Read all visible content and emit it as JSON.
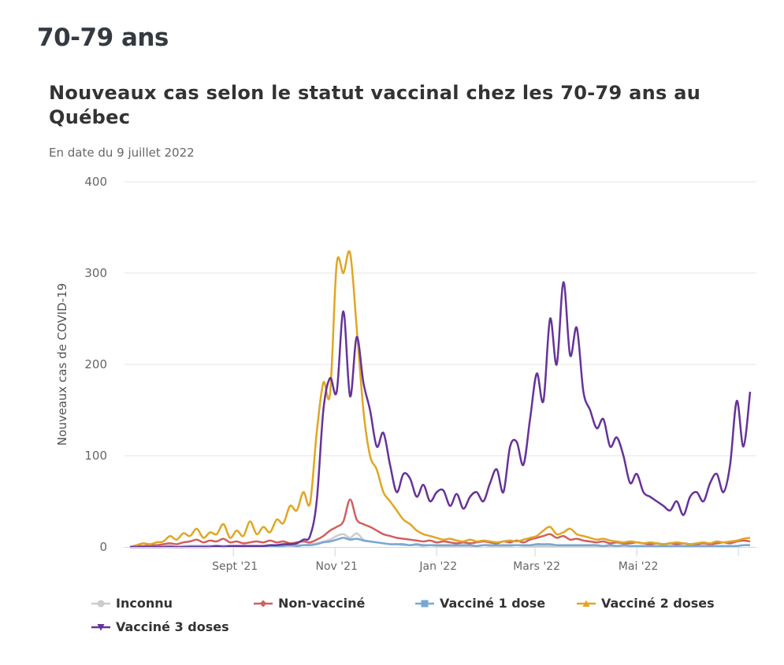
{
  "page": {
    "heading": "70-79 ans"
  },
  "chart_data": {
    "type": "line",
    "title": "Nouveaux cas selon le statut vaccinal chez les 70-79 ans au Québec",
    "subtitle": "En date du 9 juillet 2022",
    "xlabel": "",
    "ylabel": "Nouveaux cas de COVID-19",
    "ylim": [
      0,
      400
    ],
    "y_ticks": [
      0,
      100,
      200,
      300,
      400
    ],
    "y_tick_labels": [
      "0",
      "100",
      "200",
      "300",
      "400"
    ],
    "x_start": "2021-07-01",
    "x_end": "2022-07-08",
    "x_step_days": 4,
    "x_ticks": [
      {
        "date": "2021-09-01",
        "label": "Sept '21"
      },
      {
        "date": "2021-11-01",
        "label": "Nov '21"
      },
      {
        "date": "2022-01-01",
        "label": "Jan '22"
      },
      {
        "date": "2022-03-01",
        "label": "Mars '22"
      },
      {
        "date": "2022-05-01",
        "label": "Mai '22"
      },
      {
        "date": "2022-07-01",
        "label": ""
      }
    ],
    "grid": true,
    "legend_position": "bottom-left",
    "series": [
      {
        "name": "Inconnu",
        "color": "#cccccc",
        "marker": "circle",
        "values": [
          0,
          0,
          0,
          1,
          0,
          1,
          1,
          0,
          1,
          1,
          1,
          0,
          1,
          1,
          1,
          1,
          1,
          0,
          1,
          1,
          1,
          1,
          1,
          2,
          1,
          2,
          2,
          3,
          4,
          6,
          8,
          12,
          14,
          10,
          15,
          8,
          6,
          5,
          4,
          3,
          3,
          2,
          2,
          2,
          1,
          2,
          1,
          1,
          1,
          1,
          1,
          1,
          1,
          2,
          1,
          1,
          1,
          1,
          2,
          1,
          1,
          1,
          1,
          1,
          1,
          1,
          1,
          1,
          1,
          1,
          1,
          1,
          1,
          1,
          1,
          1,
          1,
          1,
          1,
          1,
          1,
          1,
          1,
          1,
          1,
          1,
          1,
          1,
          1,
          1,
          1,
          1,
          2,
          2
        ]
      },
      {
        "name": "Non-vacciné",
        "color": "#d0605e",
        "marker": "diamond",
        "values": [
          0,
          1,
          1,
          2,
          2,
          3,
          4,
          3,
          5,
          6,
          8,
          5,
          7,
          6,
          9,
          5,
          6,
          4,
          5,
          6,
          5,
          7,
          5,
          6,
          4,
          5,
          6,
          5,
          8,
          12,
          18,
          22,
          28,
          52,
          30,
          25,
          22,
          18,
          14,
          12,
          10,
          9,
          8,
          7,
          6,
          7,
          5,
          6,
          5,
          4,
          5,
          4,
          5,
          6,
          5,
          4,
          6,
          5,
          7,
          5,
          8,
          10,
          12,
          14,
          10,
          12,
          8,
          9,
          7,
          6,
          5,
          6,
          4,
          5,
          4,
          4,
          5,
          4,
          3,
          4,
          3,
          4,
          3,
          4,
          3,
          3,
          4,
          3,
          4,
          5,
          4,
          6,
          7,
          6
        ]
      },
      {
        "name": "Vacciné 1 dose",
        "color": "#78a8d2",
        "marker": "square",
        "values": [
          0,
          0,
          0,
          0,
          0,
          0,
          1,
          0,
          0,
          1,
          1,
          1,
          1,
          1,
          1,
          1,
          1,
          1,
          1,
          1,
          1,
          1,
          1,
          1,
          2,
          1,
          2,
          2,
          3,
          5,
          6,
          8,
          10,
          8,
          9,
          7,
          6,
          5,
          4,
          3,
          3,
          3,
          2,
          3,
          2,
          2,
          2,
          2,
          2,
          2,
          2,
          2,
          1,
          2,
          2,
          2,
          2,
          2,
          2,
          2,
          2,
          3,
          3,
          3,
          2,
          2,
          2,
          2,
          2,
          2,
          2,
          1,
          2,
          1,
          2,
          1,
          1,
          1,
          1,
          1,
          1,
          1,
          1,
          1,
          1,
          1,
          1,
          1,
          1,
          1,
          1,
          1,
          2,
          2
        ]
      },
      {
        "name": "Vacciné 2 doses",
        "color": "#e0a624",
        "marker": "triangle",
        "values": [
          0,
          2,
          4,
          3,
          5,
          6,
          12,
          8,
          15,
          12,
          20,
          10,
          16,
          14,
          25,
          10,
          18,
          12,
          28,
          14,
          22,
          16,
          30,
          26,
          45,
          40,
          60,
          48,
          125,
          180,
          168,
          310,
          300,
          322,
          240,
          150,
          100,
          85,
          60,
          50,
          40,
          30,
          25,
          18,
          14,
          12,
          10,
          8,
          9,
          7,
          6,
          8,
          6,
          7,
          6,
          5,
          6,
          7,
          6,
          8,
          10,
          12,
          18,
          22,
          14,
          16,
          20,
          14,
          12,
          10,
          8,
          9,
          7,
          6,
          5,
          6,
          5,
          4,
          5,
          4,
          3,
          4,
          5,
          4,
          3,
          4,
          5,
          4,
          6,
          5,
          6,
          7,
          9,
          10
        ]
      },
      {
        "name": "Vacciné 3 doses",
        "color": "#663399",
        "marker": "triangle-down",
        "values": [
          0,
          0,
          0,
          0,
          0,
          0,
          0,
          0,
          0,
          0,
          0,
          0,
          0,
          1,
          0,
          1,
          1,
          1,
          1,
          1,
          1,
          2,
          2,
          3,
          3,
          4,
          8,
          12,
          50,
          150,
          185,
          170,
          258,
          165,
          230,
          180,
          150,
          110,
          125,
          90,
          60,
          80,
          75,
          55,
          68,
          50,
          60,
          62,
          45,
          58,
          42,
          55,
          60,
          50,
          70,
          85,
          60,
          110,
          115,
          90,
          140,
          190,
          160,
          250,
          200,
          290,
          210,
          240,
          170,
          150,
          130,
          140,
          110,
          120,
          100,
          70,
          80,
          60,
          55,
          50,
          45,
          40,
          50,
          35,
          55,
          60,
          50,
          70,
          80,
          60,
          90,
          160,
          110,
          170
        ]
      }
    ]
  }
}
